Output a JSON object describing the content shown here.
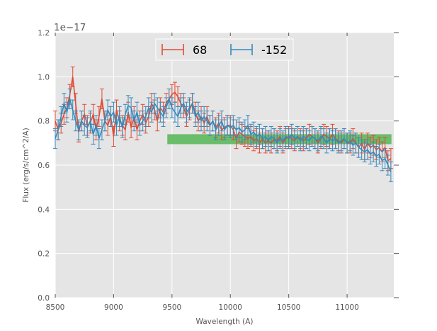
{
  "chart_data": {
    "type": "line",
    "title": "",
    "xlabel": "Wavelength (A)",
    "ylabel": "Flux (erg/s/cm^2/A)",
    "y_offset_text": "1e−17",
    "xlim": [
      8500,
      11400
    ],
    "ylim": [
      0.0,
      1.2
    ],
    "x_ticks": [
      8500,
      9000,
      9500,
      10000,
      10500,
      11000
    ],
    "x_tick_labels": [
      "8500",
      "9000",
      "9500",
      "10000",
      "10500",
      "11000"
    ],
    "y_ticks": [
      0.0,
      0.2,
      0.4,
      0.6,
      0.8,
      1.0,
      1.2
    ],
    "y_tick_labels": [
      "0.0",
      "0.2",
      "0.4",
      "0.6",
      "0.8",
      "1.0",
      "1.2"
    ],
    "grid": true,
    "legend_position": "top-center",
    "error_bar": 0.045,
    "band": {
      "x_start": 9460,
      "x_end": 11380,
      "y_low": 0.695,
      "y_high": 0.74,
      "color": "#5cb85c"
    },
    "series": [
      {
        "name": "68",
        "color": "#e24a33",
        "x": [
          8500,
          8525,
          8550,
          8575,
          8600,
          8625,
          8650,
          8675,
          8700,
          8725,
          8750,
          8775,
          8800,
          8825,
          8850,
          8875,
          8900,
          8925,
          8950,
          8975,
          9000,
          9025,
          9050,
          9075,
          9100,
          9125,
          9150,
          9175,
          9200,
          9225,
          9250,
          9275,
          9300,
          9325,
          9350,
          9375,
          9400,
          9425,
          9450,
          9475,
          9500,
          9525,
          9550,
          9575,
          9600,
          9625,
          9650,
          9675,
          9700,
          9725,
          9750,
          9775,
          9800,
          9825,
          9850,
          9875,
          9900,
          9925,
          9950,
          9975,
          10000,
          10025,
          10050,
          10075,
          10100,
          10125,
          10150,
          10175,
          10200,
          10225,
          10250,
          10275,
          10300,
          10325,
          10350,
          10375,
          10400,
          10425,
          10450,
          10475,
          10500,
          10525,
          10550,
          10575,
          10600,
          10625,
          10650,
          10675,
          10700,
          10725,
          10750,
          10775,
          10800,
          10825,
          10850,
          10875,
          10900,
          10925,
          10950,
          10975,
          11000,
          11025,
          11050,
          11075,
          11100,
          11125,
          11150,
          11175,
          11200,
          11225,
          11250,
          11275,
          11300,
          11325,
          11350,
          11375
        ],
        "values": [
          0.8,
          0.76,
          0.79,
          0.83,
          0.86,
          0.92,
          1.0,
          0.88,
          0.75,
          0.8,
          0.83,
          0.78,
          0.79,
          0.83,
          0.76,
          0.82,
          0.9,
          0.8,
          0.78,
          0.82,
          0.73,
          0.85,
          0.8,
          0.78,
          0.76,
          0.84,
          0.77,
          0.82,
          0.76,
          0.8,
          0.83,
          0.79,
          0.82,
          0.88,
          0.85,
          0.8,
          0.86,
          0.84,
          0.88,
          0.9,
          0.92,
          0.93,
          0.91,
          0.88,
          0.86,
          0.82,
          0.85,
          0.88,
          0.84,
          0.8,
          0.82,
          0.79,
          0.82,
          0.78,
          0.8,
          0.77,
          0.79,
          0.76,
          0.77,
          0.78,
          0.78,
          0.76,
          0.72,
          0.75,
          0.74,
          0.73,
          0.72,
          0.73,
          0.71,
          0.72,
          0.7,
          0.72,
          0.7,
          0.71,
          0.7,
          0.72,
          0.71,
          0.73,
          0.7,
          0.72,
          0.73,
          0.72,
          0.71,
          0.73,
          0.72,
          0.71,
          0.72,
          0.74,
          0.73,
          0.72,
          0.7,
          0.72,
          0.74,
          0.73,
          0.72,
          0.74,
          0.72,
          0.71,
          0.7,
          0.72,
          0.7,
          0.7,
          0.72,
          0.7,
          0.68,
          0.7,
          0.67,
          0.7,
          0.68,
          0.69,
          0.67,
          0.68,
          0.66,
          0.68,
          0.62,
          0.63
        ],
        "value_labels": []
      },
      {
        "name": "-152",
        "color": "#348abd",
        "x": [
          8500,
          8525,
          8550,
          8575,
          8600,
          8625,
          8650,
          8675,
          8700,
          8725,
          8750,
          8775,
          8800,
          8825,
          8850,
          8875,
          8900,
          8925,
          8950,
          8975,
          9000,
          9025,
          9050,
          9075,
          9100,
          9125,
          9150,
          9175,
          9200,
          9225,
          9250,
          9275,
          9300,
          9325,
          9350,
          9375,
          9400,
          9425,
          9450,
          9475,
          9500,
          9525,
          9550,
          9575,
          9600,
          9625,
          9650,
          9675,
          9700,
          9725,
          9750,
          9775,
          9800,
          9825,
          9850,
          9875,
          9900,
          9925,
          9950,
          9975,
          10000,
          10025,
          10050,
          10075,
          10100,
          10125,
          10150,
          10175,
          10200,
          10225,
          10250,
          10275,
          10300,
          10325,
          10350,
          10375,
          10400,
          10425,
          10450,
          10475,
          10500,
          10525,
          10550,
          10575,
          10600,
          10625,
          10650,
          10675,
          10700,
          10725,
          10750,
          10775,
          10800,
          10825,
          10850,
          10875,
          10900,
          10925,
          10950,
          10975,
          11000,
          11025,
          11050,
          11075,
          11100,
          11125,
          11150,
          11175,
          11200,
          11225,
          11250,
          11275,
          11300,
          11325,
          11350,
          11375
        ],
        "values": [
          0.72,
          0.76,
          0.82,
          0.88,
          0.84,
          0.9,
          0.85,
          0.8,
          0.76,
          0.8,
          0.78,
          0.77,
          0.8,
          0.74,
          0.78,
          0.72,
          0.76,
          0.8,
          0.85,
          0.82,
          0.84,
          0.78,
          0.82,
          0.77,
          0.83,
          0.87,
          0.86,
          0.8,
          0.84,
          0.78,
          0.8,
          0.82,
          0.86,
          0.84,
          0.88,
          0.86,
          0.84,
          0.82,
          0.86,
          0.9,
          0.86,
          0.84,
          0.82,
          0.86,
          0.88,
          0.84,
          0.86,
          0.88,
          0.82,
          0.84,
          0.8,
          0.82,
          0.8,
          0.78,
          0.8,
          0.76,
          0.78,
          0.8,
          0.76,
          0.78,
          0.77,
          0.78,
          0.76,
          0.77,
          0.75,
          0.76,
          0.78,
          0.74,
          0.75,
          0.73,
          0.74,
          0.72,
          0.73,
          0.71,
          0.73,
          0.72,
          0.7,
          0.72,
          0.71,
          0.73,
          0.72,
          0.74,
          0.72,
          0.73,
          0.71,
          0.73,
          0.72,
          0.71,
          0.73,
          0.72,
          0.71,
          0.73,
          0.72,
          0.7,
          0.72,
          0.71,
          0.72,
          0.7,
          0.71,
          0.72,
          0.7,
          0.71,
          0.69,
          0.7,
          0.68,
          0.67,
          0.66,
          0.67,
          0.65,
          0.66,
          0.64,
          0.65,
          0.62,
          0.63,
          0.6,
          0.57
        ],
        "value_labels": []
      }
    ]
  }
}
